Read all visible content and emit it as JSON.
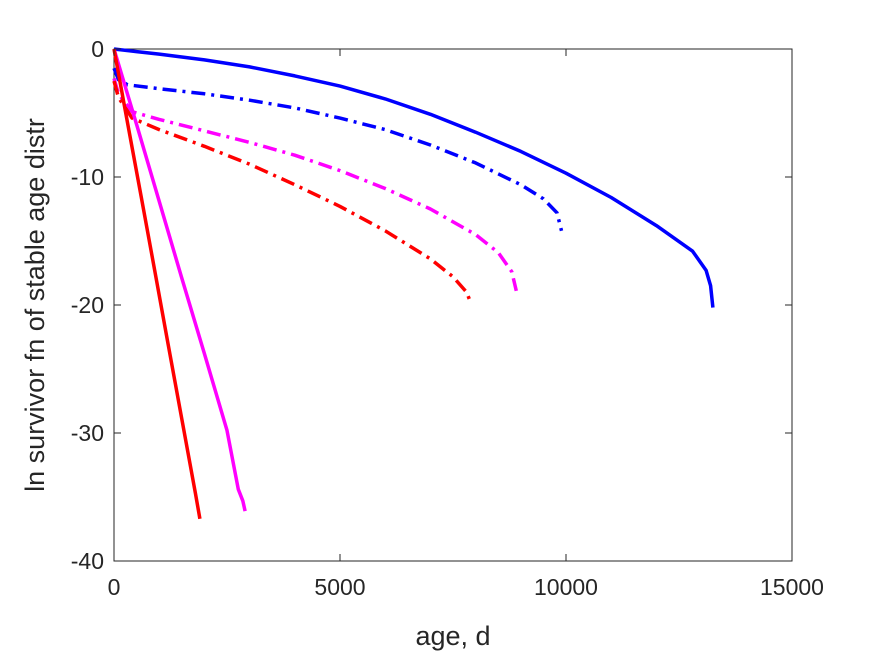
{
  "chart_data": {
    "type": "line",
    "title": "",
    "xlabel": "age, d",
    "ylabel": "ln survivor fn of stable age distr",
    "xlim": [
      0,
      15000
    ],
    "ylim": [
      -40,
      0
    ],
    "xticks": [
      0,
      5000,
      10000,
      15000
    ],
    "xtick_labels": [
      "0",
      "5000",
      "10000",
      "15000"
    ],
    "yticks": [
      0,
      -10,
      -20,
      -30,
      -40
    ],
    "ytick_labels": [
      "0",
      "-10",
      "-20",
      "-30",
      "-40"
    ],
    "grid": false,
    "legend": "none",
    "series": [
      {
        "color": "#0000ff",
        "style": "solid",
        "x": [
          0,
          500,
          1000,
          2000,
          3000,
          4000,
          5000,
          6000,
          7000,
          8000,
          9000,
          10000,
          11000,
          12000,
          12800,
          13100,
          13200,
          13250
        ],
        "y": [
          0,
          -0.2,
          -0.4,
          -0.85,
          -1.4,
          -2.1,
          -2.9,
          -3.9,
          -5.1,
          -6.5,
          -8.0,
          -9.7,
          -11.6,
          -13.8,
          -15.8,
          -17.3,
          -18.5,
          -20.2
        ]
      },
      {
        "color": "#0000ff",
        "style": "dashdot",
        "x": [
          0,
          100,
          300,
          1000,
          2000,
          3000,
          4000,
          5000,
          6000,
          7000,
          8000,
          9000,
          9500,
          9800,
          9900
        ],
        "y": [
          -1.5,
          -2.4,
          -2.8,
          -3.1,
          -3.5,
          -4.0,
          -4.6,
          -5.4,
          -6.3,
          -7.5,
          -8.9,
          -10.6,
          -11.7,
          -12.8,
          -14.2
        ]
      },
      {
        "color": "#ff00ff",
        "style": "dashdot",
        "x": [
          0,
          100,
          400,
          1000,
          2000,
          3000,
          4000,
          5000,
          6000,
          7000,
          8000,
          8500,
          8800,
          8900
        ],
        "y": [
          -2.3,
          -3.5,
          -4.9,
          -5.5,
          -6.4,
          -7.3,
          -8.3,
          -9.5,
          -10.9,
          -12.5,
          -14.5,
          -15.9,
          -17.4,
          -18.9
        ]
      },
      {
        "color": "#ff0000",
        "style": "dashdot",
        "x": [
          0,
          100,
          400,
          1000,
          2000,
          3000,
          4000,
          5000,
          6000,
          7000,
          7500,
          7800,
          7900
        ],
        "y": [
          -2.5,
          -3.8,
          -5.4,
          -6.3,
          -7.6,
          -9.0,
          -10.6,
          -12.3,
          -14.2,
          -16.4,
          -17.8,
          -19.0,
          -19.9
        ]
      },
      {
        "color": "#ff00ff",
        "style": "solid",
        "x": [
          0,
          500,
          1000,
          1500,
          2000,
          2500,
          2750,
          2850,
          2900
        ],
        "y": [
          0,
          -5.9,
          -11.9,
          -17.9,
          -23.8,
          -29.8,
          -34.4,
          -35.3,
          -36.1
        ]
      },
      {
        "color": "#ff0000",
        "style": "solid",
        "x": [
          0,
          300,
          600,
          900,
          1200,
          1500,
          1800,
          1900
        ],
        "y": [
          0,
          -5.8,
          -11.5,
          -17.3,
          -23.1,
          -28.9,
          -34.7,
          -36.7
        ]
      }
    ]
  }
}
